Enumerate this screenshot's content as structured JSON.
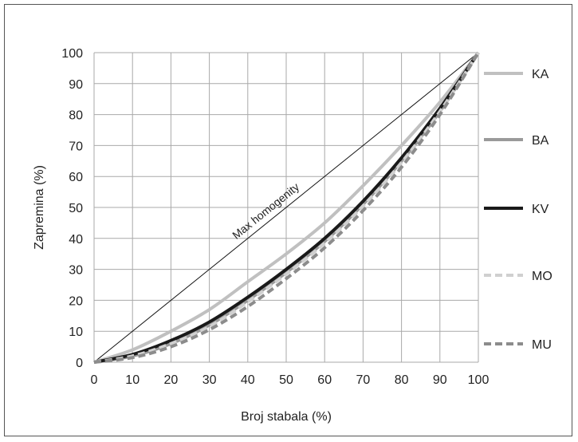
{
  "chart_data": {
    "type": "line",
    "title": "",
    "xlabel": "Broj stabala (%)",
    "ylabel": "Zapremina (%)",
    "xlim": [
      0,
      100
    ],
    "ylim": [
      0,
      100
    ],
    "x_ticks": [
      0,
      10,
      20,
      30,
      40,
      50,
      60,
      70,
      80,
      90,
      100
    ],
    "y_ticks": [
      0,
      10,
      20,
      30,
      40,
      50,
      60,
      70,
      80,
      90,
      100
    ],
    "grid": true,
    "legend_position": "right",
    "annotation": "Max homogenity",
    "x": [
      0,
      10,
      20,
      30,
      40,
      50,
      60,
      70,
      80,
      90,
      100
    ],
    "reference_line": {
      "x": [
        0,
        100
      ],
      "y": [
        0,
        100
      ]
    },
    "series": [
      {
        "name": "KA",
        "values": [
          0,
          4,
          10,
          17,
          26,
          35,
          45,
          57,
          70,
          84,
          100
        ],
        "color": "#c0c0c0",
        "dash": "solid"
      },
      {
        "name": "BA",
        "values": [
          0,
          2,
          6,
          12,
          20,
          29,
          39,
          51,
          65,
          81,
          100
        ],
        "color": "#9a9a9a",
        "dash": "solid"
      },
      {
        "name": "KV",
        "values": [
          0,
          2.5,
          7,
          13,
          21,
          30,
          40,
          52,
          66,
          82,
          100
        ],
        "color": "#1a1a1a",
        "dash": "solid"
      },
      {
        "name": "MO",
        "values": [
          0,
          2,
          6,
          11.5,
          19.5,
          28.5,
          38.5,
          50.5,
          64.5,
          81,
          100
        ],
        "color": "#d0d0d0",
        "dash": "dashed"
      },
      {
        "name": "MU",
        "values": [
          0,
          1.5,
          5,
          10.5,
          18,
          27,
          37,
          49,
          63,
          80,
          100
        ],
        "color": "#8c8c8c",
        "dash": "dashed"
      }
    ]
  }
}
